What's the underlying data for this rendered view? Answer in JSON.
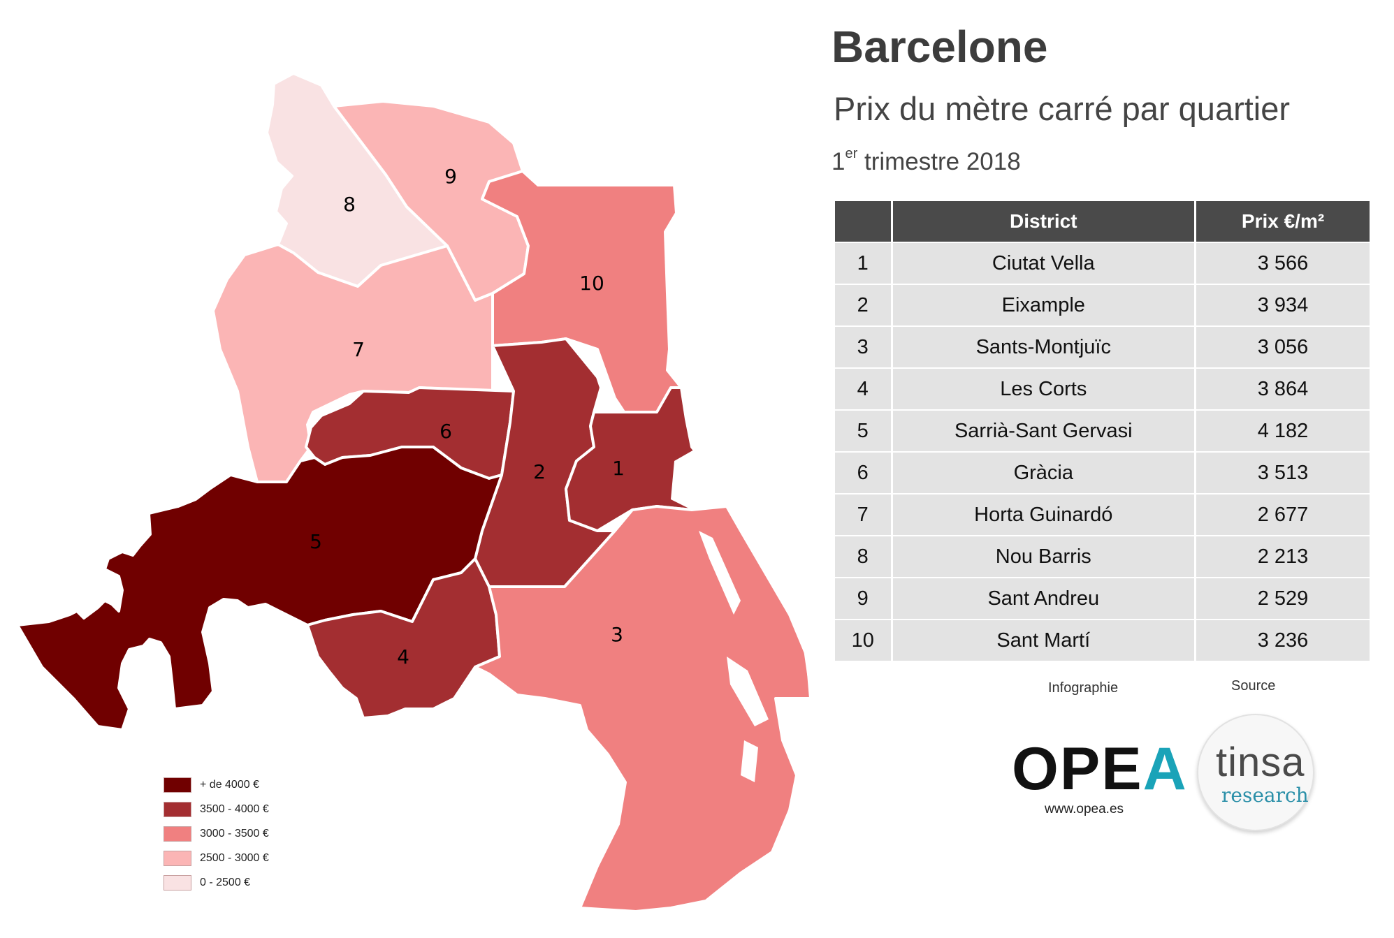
{
  "header": {
    "title": "Barcelone",
    "subtitle": "Prix du mètre carré par quartier",
    "period_sup_prefix": "1",
    "period_sup": "er",
    "period_rest": " trimestre 2018"
  },
  "table": {
    "headers": [
      "",
      "District",
      "Prix €/m²"
    ],
    "rows": [
      {
        "num": "1",
        "district": "Ciutat Vella",
        "price": "3 566"
      },
      {
        "num": "2",
        "district": "Eixample",
        "price": "3 934"
      },
      {
        "num": "3",
        "district": "Sants-Montjuïc",
        "price": "3 056"
      },
      {
        "num": "4",
        "district": "Les Corts",
        "price": "3 864"
      },
      {
        "num": "5",
        "district": "Sarrià-Sant Gervasi",
        "price": "4 182"
      },
      {
        "num": "6",
        "district": "Gràcia",
        "price": "3 513"
      },
      {
        "num": "7",
        "district": "Horta Guinardó",
        "price": "2 677"
      },
      {
        "num": "8",
        "district": "Nou Barris",
        "price": "2 213"
      },
      {
        "num": "9",
        "district": "Sant Andreu",
        "price": "2 529"
      },
      {
        "num": "10",
        "district": "Sant Martí",
        "price": "3 236"
      }
    ]
  },
  "map": {
    "district_labels": [
      "1",
      "2",
      "3",
      "4",
      "5",
      "6",
      "7",
      "8",
      "9",
      "10"
    ],
    "district_bins": {
      "1": 1,
      "2": 1,
      "3": 2,
      "4": 1,
      "5": 0,
      "6": 1,
      "7": 3,
      "8": 4,
      "9": 3,
      "10": 2
    }
  },
  "legend": {
    "items": [
      {
        "label": "+ de 4000 €",
        "color": "#700000"
      },
      {
        "label": "3500 - 4000 €",
        "color": "#a32e31"
      },
      {
        "label": "3000 - 3500 €",
        "color": "#f08080"
      },
      {
        "label": "2500 - 3000 €",
        "color": "#fbb5b5"
      },
      {
        "label": "0 - 2500 €",
        "color": "#f9e2e3"
      }
    ]
  },
  "credits": {
    "infographie_label": "Infographie",
    "source_label": "Source",
    "opea_main": "OPE",
    "opea_accent": "A",
    "opea_url": "www.opea.es",
    "tinsa_name": "tinsa",
    "tinsa_sub": "research"
  }
}
